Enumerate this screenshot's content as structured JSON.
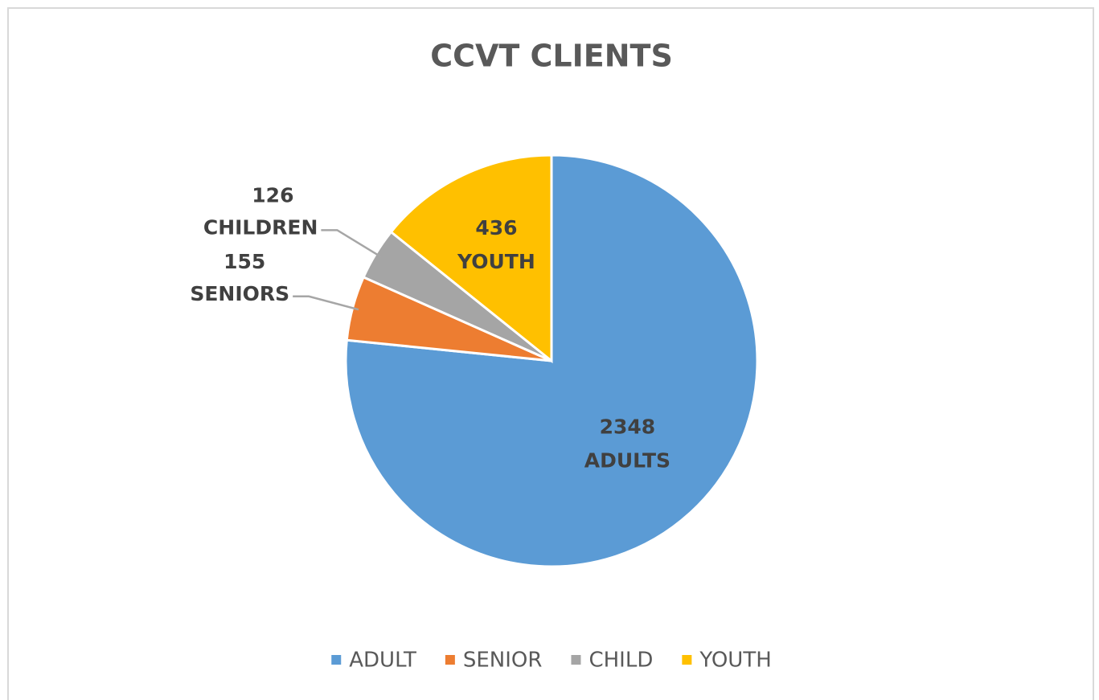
{
  "chart_data": {
    "type": "pie",
    "title": "CCVT CLIENTS",
    "categories": [
      "ADULT",
      "SENIOR",
      "CHILD",
      "YOUTH"
    ],
    "values": [
      2348,
      155,
      126,
      436
    ],
    "label_names": [
      "ADULTS",
      "SENIORS",
      "CHILDREN",
      "YOUTH"
    ],
    "colors": [
      "#5b9bd5",
      "#ed7d31",
      "#a5a5a5",
      "#ffc000"
    ],
    "legend": "bottom"
  }
}
